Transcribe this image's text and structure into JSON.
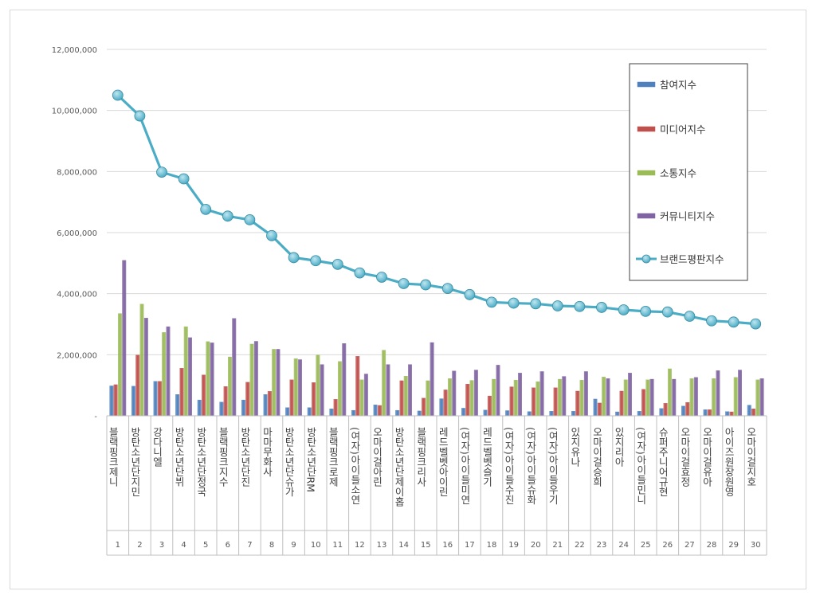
{
  "chart_data": {
    "type": "bar",
    "title": "",
    "xlabel": "",
    "ylabel": "",
    "ylim": [
      0,
      12000000
    ],
    "yticks": [
      "12,000,000",
      "10,000,000",
      "8,000,000",
      "6,000,000",
      "4,000,000",
      "2,000,000",
      "-"
    ],
    "ytick_values": [
      12000000,
      10000000,
      8000000,
      6000000,
      4000000,
      2000000,
      0
    ],
    "grid": true,
    "legend_position": "top-right",
    "ranks": [
      "1",
      "2",
      "3",
      "4",
      "5",
      "6",
      "7",
      "8",
      "9",
      "10",
      "11",
      "12",
      "13",
      "14",
      "15",
      "16",
      "17",
      "18",
      "19",
      "20",
      "21",
      "22",
      "23",
      "24",
      "25",
      "26",
      "27",
      "28",
      "29",
      "30"
    ],
    "categories": [
      "블랙핑크제니",
      "방탄소년단지민",
      "강다니엘",
      "방탄소년단뷔",
      "방탄소년단정국",
      "블랙핑크지수",
      "방탄소년단진",
      "마마무화사",
      "방탄소년단슈가",
      "방탄소년단RM",
      "블랙핑크로제",
      "(여자)아이들소연",
      "오마이걸아린",
      "방탄소년단제이홉",
      "블랙핑크리사",
      "레드벨벳아이린",
      "(여자)아이들미연",
      "레드벨벳슬기",
      "(여자)아이들수진",
      "(여자)아이들슈화",
      "(여자)아이들우기",
      "있지유나",
      "오마이걸승희",
      "있지리아",
      "(여자)아이들민니",
      "슈퍼주니어규현",
      "오마이걸효정",
      "오마이걸유아",
      "아이즈원장원영",
      "오마이걸지호"
    ],
    "series": [
      {
        "name": "참여지수",
        "type": "bar",
        "color": "#4f81bd",
        "values": [
          980000,
          970000,
          1130000,
          700000,
          520000,
          450000,
          520000,
          700000,
          270000,
          270000,
          230000,
          180000,
          360000,
          180000,
          160000,
          560000,
          250000,
          190000,
          170000,
          140000,
          150000,
          150000,
          550000,
          130000,
          150000,
          240000,
          320000,
          200000,
          140000,
          350000
        ]
      },
      {
        "name": "미디어지수",
        "type": "bar",
        "color": "#c0504d",
        "values": [
          1020000,
          1990000,
          1130000,
          1560000,
          1340000,
          960000,
          1100000,
          800000,
          1180000,
          1090000,
          540000,
          1950000,
          340000,
          1150000,
          580000,
          850000,
          1040000,
          650000,
          950000,
          920000,
          920000,
          810000,
          420000,
          810000,
          870000,
          410000,
          440000,
          200000,
          130000,
          230000
        ]
      },
      {
        "name": "소통지수",
        "type": "bar",
        "color": "#9bbb59",
        "values": [
          3350000,
          3660000,
          2730000,
          2920000,
          2430000,
          1930000,
          2350000,
          2180000,
          1870000,
          1990000,
          1780000,
          1180000,
          2150000,
          1300000,
          1150000,
          1220000,
          1160000,
          1200000,
          1170000,
          1120000,
          1200000,
          1170000,
          1270000,
          1180000,
          1180000,
          1540000,
          1220000,
          1220000,
          1260000,
          1180000
        ]
      },
      {
        "name": "커뮤니티지수",
        "type": "bar",
        "color": "#8064a2",
        "values": [
          5090000,
          3200000,
          2920000,
          2560000,
          2390000,
          3190000,
          2440000,
          2180000,
          1840000,
          1680000,
          2370000,
          1370000,
          1680000,
          1680000,
          2400000,
          1470000,
          1500000,
          1660000,
          1400000,
          1450000,
          1290000,
          1450000,
          1220000,
          1400000,
          1200000,
          1200000,
          1260000,
          1480000,
          1500000,
          1220000
        ]
      },
      {
        "name": "브랜드평판지수",
        "type": "line",
        "color": "#4bacc6",
        "values": [
          10500000,
          9820000,
          7980000,
          7760000,
          6760000,
          6540000,
          6420000,
          5900000,
          5180000,
          5080000,
          4960000,
          4680000,
          4540000,
          4330000,
          4290000,
          4170000,
          3970000,
          3720000,
          3690000,
          3670000,
          3600000,
          3580000,
          3550000,
          3470000,
          3420000,
          3400000,
          3260000,
          3110000,
          3070000,
          3010000
        ]
      }
    ]
  }
}
